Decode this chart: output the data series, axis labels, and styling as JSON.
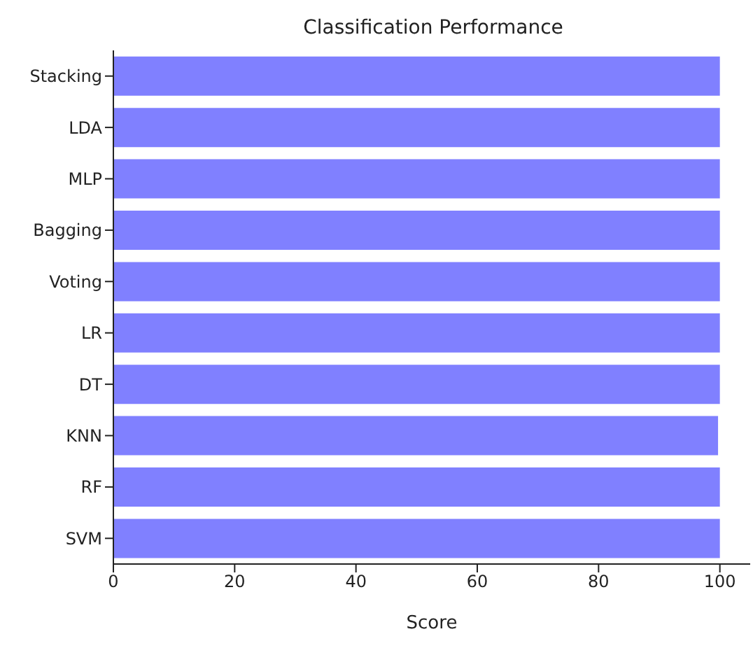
{
  "chart_data": {
    "type": "bar",
    "orientation": "horizontal",
    "title": "Classification Performance",
    "xlabel": "Score",
    "categories": [
      "Stacking",
      "LDA",
      "MLP",
      "Bagging",
      "Voting",
      "LR",
      "DT",
      "KNN",
      "RF",
      "SVM"
    ],
    "values": [
      100,
      100,
      100,
      100,
      100,
      100,
      100,
      99.7,
      100,
      100
    ],
    "color": "#8080ff",
    "xlim": [
      0,
      105
    ],
    "xticks": [
      0,
      20,
      40,
      60,
      80,
      100
    ],
    "grid": false,
    "legend": false
  }
}
